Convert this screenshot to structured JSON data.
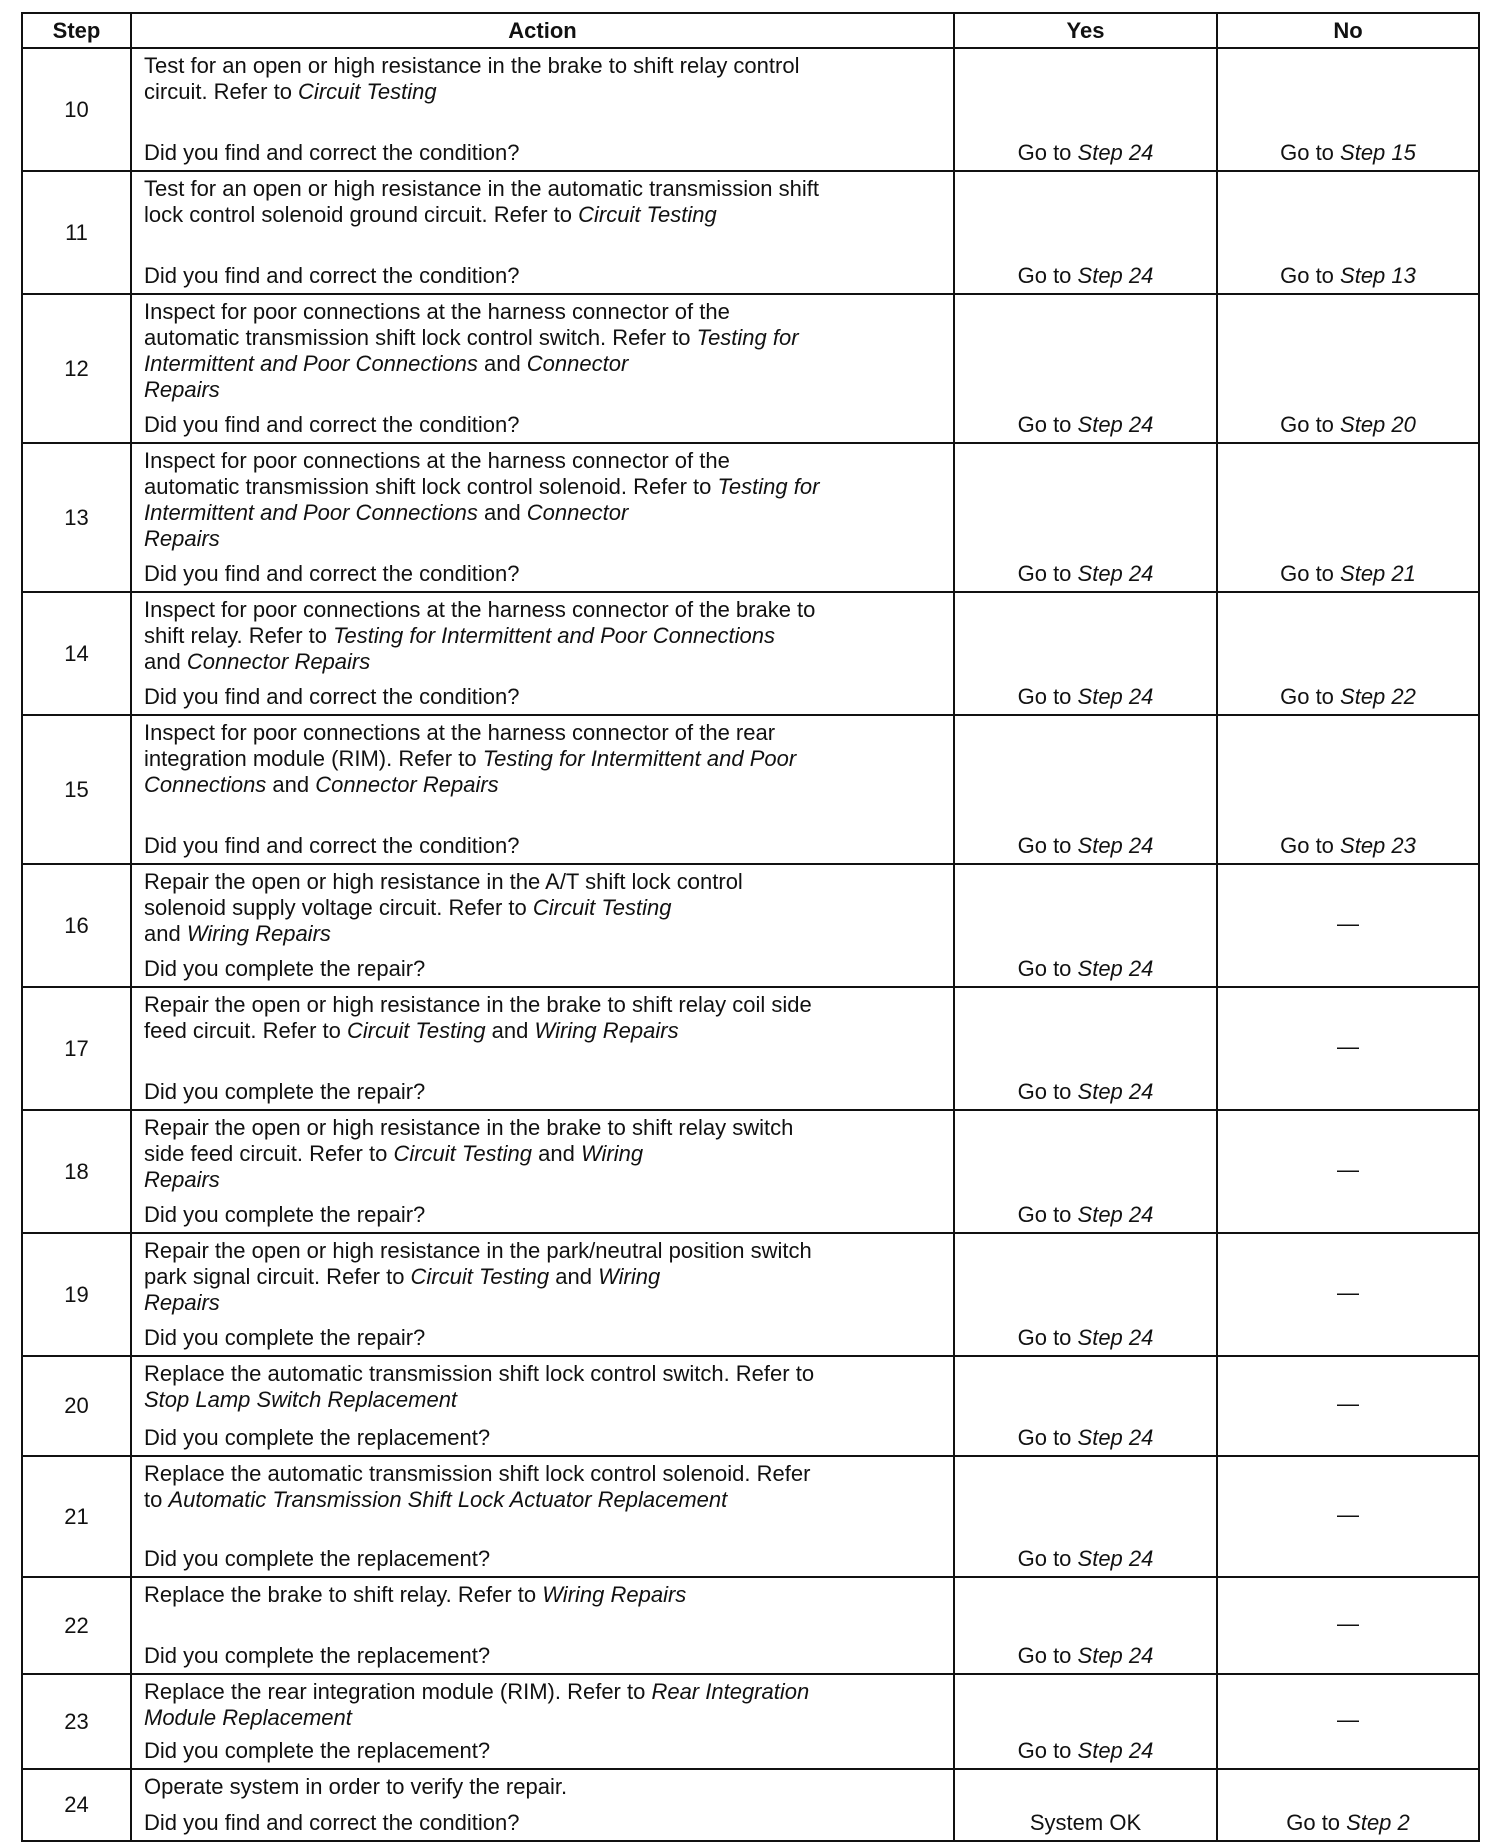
{
  "headers": {
    "step": "Step",
    "action": "Action",
    "yes": "Yes",
    "no": "No"
  },
  "rows": [
    {
      "step": "10",
      "lines": [
        [
          [
            "Test for an open or high resistance in the brake to shift relay control",
            0
          ]
        ],
        [
          [
            "circuit. Refer to ",
            0
          ],
          [
            "Circuit Testing",
            1
          ]
        ]
      ],
      "question": "Did you find and correct the condition?",
      "yes": [
        [
          "Go to ",
          0
        ],
        [
          "Step 24",
          1
        ]
      ],
      "no": [
        [
          "Go to ",
          0
        ],
        [
          "Step 15",
          1
        ]
      ]
    },
    {
      "step": "11",
      "lines": [
        [
          [
            "Test for an open or high resistance in the automatic transmission shift",
            0
          ]
        ],
        [
          [
            "lock control solenoid ground circuit. Refer to ",
            0
          ],
          [
            "Circuit Testing",
            1
          ]
        ]
      ],
      "question": "Did you find and correct the condition?",
      "yes": [
        [
          "Go to ",
          0
        ],
        [
          "Step 24",
          1
        ]
      ],
      "no": [
        [
          "Go to ",
          0
        ],
        [
          "Step 13",
          1
        ]
      ]
    },
    {
      "step": "12",
      "lines": [
        [
          [
            "Inspect for poor connections at the harness connector of the",
            0
          ]
        ],
        [
          [
            "automatic transmission shift lock control switch. Refer to ",
            0
          ],
          [
            "Testing for",
            1
          ]
        ],
        [
          [
            "Intermittent and Poor Connections",
            1
          ],
          [
            " and ",
            0
          ],
          [
            "Connector",
            1
          ]
        ],
        [
          [
            "Repairs",
            1
          ]
        ]
      ],
      "question": "Did you find and correct the condition?",
      "yes": [
        [
          "Go to ",
          0
        ],
        [
          "Step 24",
          1
        ]
      ],
      "no": [
        [
          "Go to ",
          0
        ],
        [
          "Step 20",
          1
        ]
      ]
    },
    {
      "step": "13",
      "lines": [
        [
          [
            "Inspect for poor connections at the harness connector of the",
            0
          ]
        ],
        [
          [
            "automatic transmission shift lock control solenoid. Refer to ",
            0
          ],
          [
            "Testing for",
            1
          ]
        ],
        [
          [
            "Intermittent and Poor Connections",
            1
          ],
          [
            " and ",
            0
          ],
          [
            "Connector",
            1
          ]
        ],
        [
          [
            "Repairs",
            1
          ]
        ]
      ],
      "question": "Did you find and correct the condition?",
      "yes": [
        [
          "Go to ",
          0
        ],
        [
          "Step 24",
          1
        ]
      ],
      "no": [
        [
          "Go to ",
          0
        ],
        [
          "Step 21",
          1
        ]
      ]
    },
    {
      "step": "14",
      "lines": [
        [
          [
            "Inspect for poor connections at the harness connector of the brake to",
            0
          ]
        ],
        [
          [
            "shift relay. Refer to ",
            0
          ],
          [
            "Testing for Intermittent and Poor Connections",
            1
          ]
        ],
        [
          [
            "and ",
            0
          ],
          [
            "Connector Repairs",
            1
          ]
        ]
      ],
      "question": "Did you find and correct the condition?",
      "yes": [
        [
          "Go to ",
          0
        ],
        [
          "Step 24",
          1
        ]
      ],
      "no": [
        [
          "Go to ",
          0
        ],
        [
          "Step 22",
          1
        ]
      ]
    },
    {
      "step": "15",
      "lines": [
        [
          [
            "Inspect for poor connections at the harness connector of the rear",
            0
          ]
        ],
        [
          [
            "integration module (RIM). Refer to ",
            0
          ],
          [
            "Testing for Intermittent and Poor",
            1
          ]
        ],
        [
          [
            "Connections",
            1
          ],
          [
            " and ",
            0
          ],
          [
            "Connector Repairs",
            1
          ]
        ]
      ],
      "question": "Did you find and correct the condition?",
      "yes": [
        [
          "Go to ",
          0
        ],
        [
          "Step 24",
          1
        ]
      ],
      "no": [
        [
          "Go to ",
          0
        ],
        [
          "Step 23",
          1
        ]
      ]
    },
    {
      "step": "16",
      "lines": [
        [
          [
            "Repair the open or high resistance in the A/T shift lock control",
            0
          ]
        ],
        [
          [
            "solenoid supply voltage circuit. Refer to ",
            0
          ],
          [
            "Circuit Testing",
            1
          ]
        ],
        [
          [
            "and ",
            0
          ],
          [
            "Wiring Repairs",
            1
          ]
        ]
      ],
      "question": "Did you complete the repair?",
      "yes": [
        [
          "Go to ",
          0
        ],
        [
          "Step 24",
          1
        ]
      ],
      "no": [
        [
          "—",
          0
        ]
      ]
    },
    {
      "step": "17",
      "lines": [
        [
          [
            "Repair the open or high resistance in the brake to shift relay coil side",
            0
          ]
        ],
        [
          [
            "feed circuit. Refer to ",
            0
          ],
          [
            "Circuit Testing",
            1
          ],
          [
            " and ",
            0
          ],
          [
            "Wiring Repairs",
            1
          ]
        ]
      ],
      "question": "Did you complete the repair?",
      "yes": [
        [
          "Go to ",
          0
        ],
        [
          "Step 24",
          1
        ]
      ],
      "no": [
        [
          "—",
          0
        ]
      ]
    },
    {
      "step": "18",
      "lines": [
        [
          [
            "Repair the open or high resistance in the brake to shift relay switch",
            0
          ]
        ],
        [
          [
            "side feed circuit. Refer to ",
            0
          ],
          [
            "Circuit Testing",
            1
          ],
          [
            " and ",
            0
          ],
          [
            "Wiring",
            1
          ]
        ],
        [
          [
            "Repairs",
            1
          ]
        ]
      ],
      "question": "Did you complete the repair?",
      "yes": [
        [
          "Go to ",
          0
        ],
        [
          "Step 24",
          1
        ]
      ],
      "no": [
        [
          "—",
          0
        ]
      ]
    },
    {
      "step": "19",
      "lines": [
        [
          [
            "Repair the open or high resistance in the park/neutral position switch",
            0
          ]
        ],
        [
          [
            "park signal circuit. Refer to ",
            0
          ],
          [
            "Circuit Testing",
            1
          ],
          [
            " and ",
            0
          ],
          [
            "Wiring",
            1
          ]
        ],
        [
          [
            "Repairs",
            1
          ]
        ]
      ],
      "question": "Did you complete the repair?",
      "yes": [
        [
          "Go to ",
          0
        ],
        [
          "Step 24",
          1
        ]
      ],
      "no": [
        [
          "—",
          0
        ]
      ]
    },
    {
      "step": "20",
      "lines": [
        [
          [
            "Replace the automatic transmission shift lock control switch. Refer to",
            0
          ]
        ],
        [
          [
            "Stop Lamp Switch Replacement",
            1
          ]
        ]
      ],
      "question": "Did you complete the replacement?",
      "yes": [
        [
          "Go to ",
          0
        ],
        [
          "Step 24",
          1
        ]
      ],
      "no": [
        [
          "—",
          0
        ]
      ]
    },
    {
      "step": "21",
      "lines": [
        [
          [
            "Replace the automatic transmission shift lock control solenoid. Refer",
            0
          ]
        ],
        [
          [
            "to ",
            0
          ],
          [
            "Automatic Transmission Shift Lock Actuator Replacement",
            1
          ]
        ]
      ],
      "question": "Did you complete the replacement?",
      "yes": [
        [
          "Go to ",
          0
        ],
        [
          "Step 24",
          1
        ]
      ],
      "no": [
        [
          "—",
          0
        ]
      ]
    },
    {
      "step": "22",
      "lines": [
        [
          [
            "Replace the brake to shift relay. Refer to ",
            0
          ],
          [
            "Wiring Repairs",
            1
          ]
        ]
      ],
      "question": "Did you complete the replacement?",
      "yes": [
        [
          "Go to ",
          0
        ],
        [
          "Step 24",
          1
        ]
      ],
      "no": [
        [
          "—",
          0
        ]
      ]
    },
    {
      "step": "23",
      "lines": [
        [
          [
            "Replace the rear integration module (RIM). Refer to ",
            0
          ],
          [
            "Rear Integration",
            1
          ]
        ],
        [
          [
            "Module Replacement",
            1
          ]
        ]
      ],
      "question": "Did you complete the replacement?",
      "yes": [
        [
          "Go to ",
          0
        ],
        [
          "Step 24",
          1
        ]
      ],
      "no": [
        [
          "—",
          0
        ]
      ]
    },
    {
      "step": "24",
      "lines": [
        [
          [
            "Operate system in order to verify the repair.",
            0
          ]
        ]
      ],
      "question": "Did you find and correct the condition?",
      "yes": [
        [
          "System OK",
          0
        ]
      ],
      "no": [
        [
          "Go to ",
          0
        ],
        [
          "Step 2",
          1
        ]
      ]
    }
  ]
}
